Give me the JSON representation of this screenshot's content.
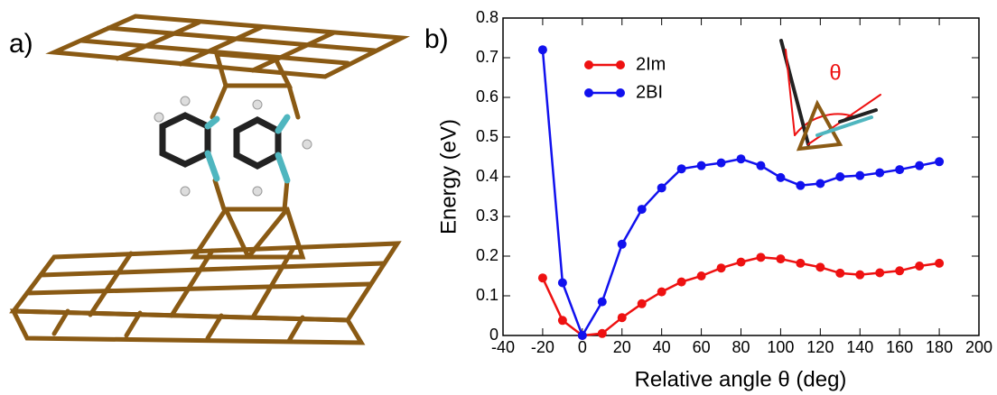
{
  "panel_a_label": "a)",
  "chart_data": {
    "type": "line",
    "panel_label": "b)",
    "x_label": "Relative angle θ (deg)",
    "y_label": "Energy (eV)",
    "inset_label": "θ",
    "x": [
      -20,
      -10,
      0,
      10,
      20,
      30,
      40,
      50,
      60,
      70,
      80,
      90,
      100,
      110,
      120,
      130,
      140,
      150,
      160,
      170,
      180
    ],
    "series": [
      {
        "name": "2Im",
        "color": "#ee1111",
        "values": [
          0.145,
          0.038,
          0.0,
          0.005,
          0.045,
          0.08,
          0.11,
          0.135,
          0.15,
          0.17,
          0.185,
          0.197,
          0.193,
          0.182,
          0.172,
          0.157,
          0.153,
          0.158,
          0.163,
          0.175,
          0.182
        ]
      },
      {
        "name": "2BI",
        "color": "#1111ee",
        "values": [
          0.72,
          0.133,
          0.0,
          0.085,
          0.23,
          0.318,
          0.372,
          0.42,
          0.428,
          0.435,
          0.445,
          0.428,
          0.398,
          0.378,
          0.383,
          0.4,
          0.403,
          0.41,
          0.418,
          0.428,
          0.438
        ]
      }
    ],
    "xlim": [
      -40,
      200
    ],
    "xticks": [
      -40,
      -20,
      0,
      20,
      40,
      60,
      80,
      100,
      120,
      140,
      160,
      180,
      200
    ],
    "ylim": [
      0,
      0.8
    ],
    "yticks": [
      0,
      0.1,
      0.2,
      0.3,
      0.4,
      0.5,
      0.6,
      0.7,
      0.8
    ],
    "legend": "upper-left"
  }
}
